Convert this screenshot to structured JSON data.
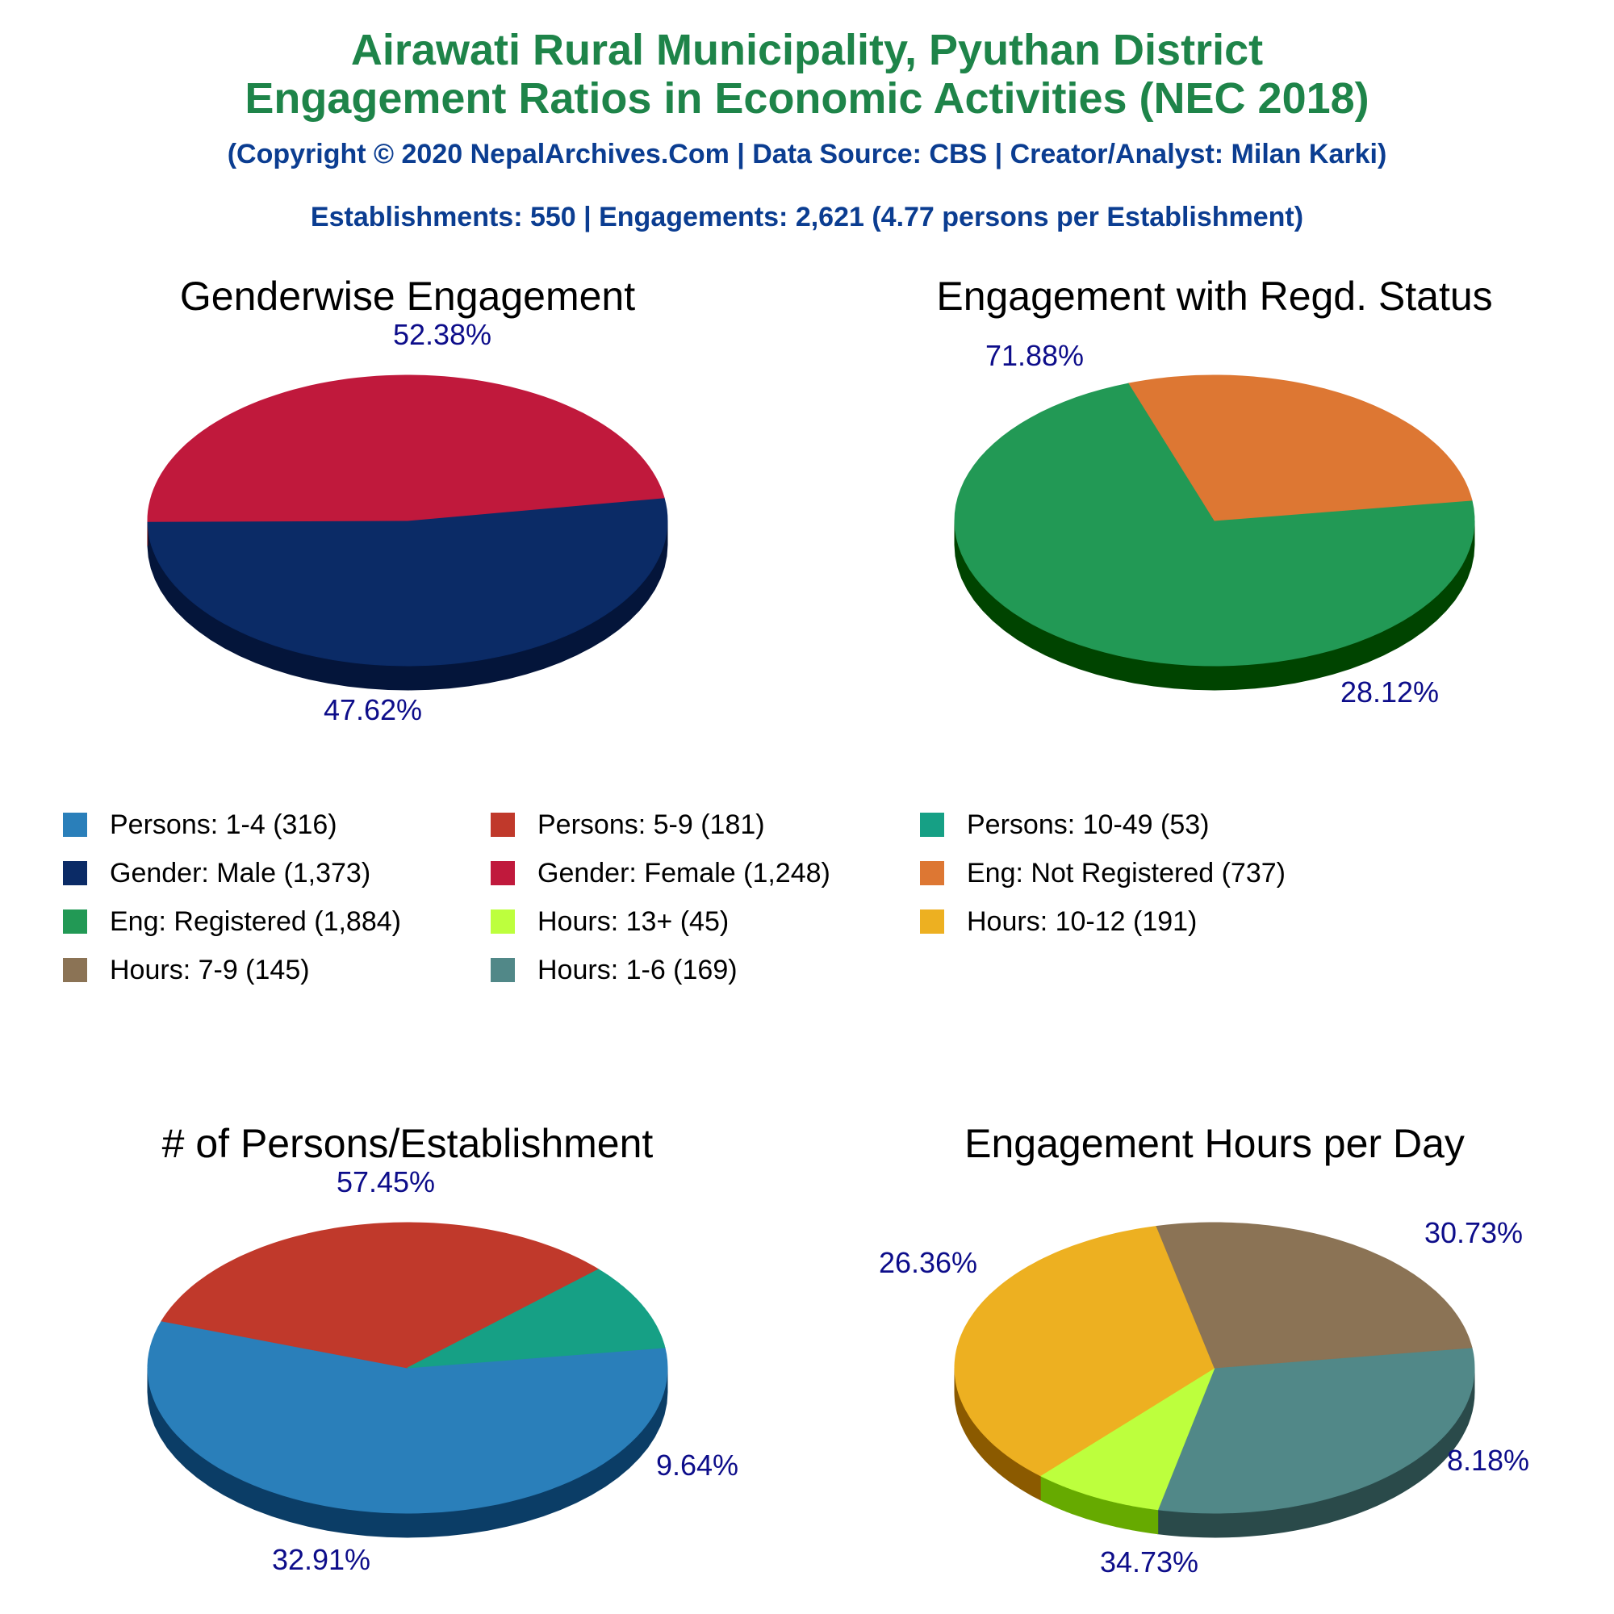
{
  "header": {
    "title_line1": "Airawati Rural Municipality, Pyuthan District",
    "title_line2": "Engagement Ratios in Economic Activities (NEC 2018)",
    "copyright": "(Copyright © 2020 NepalArchives.Com | Data Source: CBS | Creator/Analyst: Milan Karki)",
    "summary": "Establishments: 550 | Engagements: 2,621 (4.77 persons per Establishment)"
  },
  "legend": [
    {
      "label": "Persons: 1-4 (316)",
      "color": "#2a7fba"
    },
    {
      "label": "Persons: 5-9 (181)",
      "color": "#c0392b"
    },
    {
      "label": "Persons: 10-49 (53)",
      "color": "#16a085"
    },
    {
      "label": "Gender: Male (1,373)",
      "color": "#0b2b66"
    },
    {
      "label": "Gender: Female (1,248)",
      "color": "#c0193c"
    },
    {
      "label": "Eng: Not Registered (737)",
      "color": "#dd7733"
    },
    {
      "label": "Eng: Registered (1,884)",
      "color": "#229955"
    },
    {
      "label": "Hours: 13+ (45)",
      "color": "#bdff3d"
    },
    {
      "label": "Hours: 10-12 (191)",
      "color": "#edb021"
    },
    {
      "label": "Hours: 7-9 (145)",
      "color": "#8b7355"
    },
    {
      "label": "Hours: 1-6 (169)",
      "color": "#518888"
    }
  ],
  "chart_data": [
    {
      "type": "pie",
      "title": "Genderwise Engagement",
      "slices": [
        {
          "name": "Gender: Male",
          "value": 1373,
          "percent_label": "52.38%",
          "color": "#0b2b66",
          "side": "#04153a"
        },
        {
          "name": "Gender: Female",
          "value": 1248,
          "percent_label": "47.62%",
          "color": "#c0193c",
          "side": "#660000"
        }
      ]
    },
    {
      "type": "pie",
      "title": "Engagement with Regd. Status",
      "slices": [
        {
          "name": "Eng: Registered",
          "value": 1884,
          "percent_label": "71.88%",
          "color": "#229955",
          "side": "#004400"
        },
        {
          "name": "Eng: Not Registered",
          "value": 737,
          "percent_label": "28.12%",
          "color": "#dd7733",
          "side": "#771a00"
        }
      ]
    },
    {
      "type": "pie",
      "title": "# of Persons/Establishment",
      "slices": [
        {
          "name": "Persons: 1-4",
          "value": 316,
          "percent_label": "57.45%",
          "color": "#2a7fba",
          "side": "#0b3d66"
        },
        {
          "name": "Persons: 5-9",
          "value": 181,
          "percent_label": "32.91%",
          "color": "#c0392b",
          "side": "#660000"
        },
        {
          "name": "Persons: 10-49",
          "value": 53,
          "percent_label": "9.64%",
          "color": "#16a085",
          "side": "#003322"
        }
      ]
    },
    {
      "type": "pie",
      "title": "Engagement Hours per Day",
      "slices": [
        {
          "name": "Hours: 1-6",
          "value": 169,
          "percent_label": "30.73%",
          "color": "#518888",
          "side": "#2a4a4a"
        },
        {
          "name": "Hours: 13+",
          "value": 45,
          "percent_label": "8.18%",
          "color": "#bdff3d",
          "side": "#66aa00"
        },
        {
          "name": "Hours: 10-12",
          "value": 191,
          "percent_label": "34.73%",
          "color": "#edb021",
          "side": "#8b5a00"
        },
        {
          "name": "Hours: 7-9",
          "value": 145,
          "percent_label": "26.36%",
          "color": "#8b7355",
          "side": "#4a3a1a"
        }
      ]
    }
  ]
}
